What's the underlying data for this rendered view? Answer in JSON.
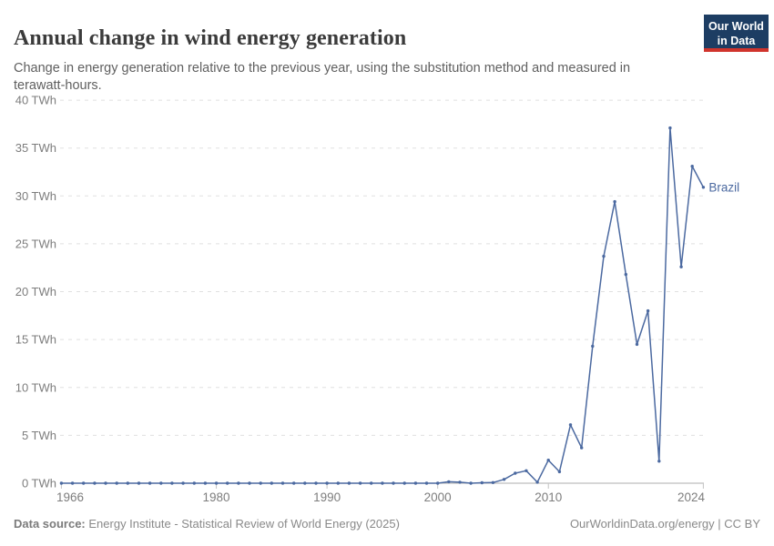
{
  "header": {
    "title": "Annual change in wind energy generation",
    "subtitle": "Change in energy generation relative to the previous year, using the substitution method and measured in terawatt-hours.",
    "logo": {
      "line1": "Our World",
      "line2": "in Data"
    }
  },
  "footer": {
    "source_label": "Data source:",
    "source_text": "Energy Institute - Statistical Review of World Energy (2025)",
    "credit": "OurWorldinData.org/energy | CC BY"
  },
  "colors": {
    "series_line": "#4b69a0",
    "logo_bg": "#1d3d63",
    "logo_accent": "#d0342c",
    "grid": "#e0e0e0",
    "axis": "#adadad",
    "tick": "#c4c4c4",
    "tick_text": "#7d7d7d"
  },
  "chart_data": {
    "type": "line",
    "title": "Annual change in wind energy generation",
    "unit": "TWh",
    "ylabel": "",
    "xlabel": "",
    "ylim": [
      0,
      40
    ],
    "ytick_step": 5,
    "grid": "horizontal-dashed",
    "legend_position": "label-at-line-end",
    "xticks": [
      1966,
      1980,
      1990,
      2000,
      2010,
      2024
    ],
    "years": [
      1966,
      1967,
      1968,
      1969,
      1970,
      1971,
      1972,
      1973,
      1974,
      1975,
      1976,
      1977,
      1978,
      1979,
      1980,
      1981,
      1982,
      1983,
      1984,
      1985,
      1986,
      1987,
      1988,
      1989,
      1990,
      1991,
      1992,
      1993,
      1994,
      1995,
      1996,
      1997,
      1998,
      1999,
      2000,
      2001,
      2002,
      2003,
      2004,
      2005,
      2006,
      2007,
      2008,
      2009,
      2010,
      2011,
      2012,
      2013,
      2014,
      2015,
      2016,
      2017,
      2018,
      2019,
      2020,
      2021,
      2022,
      2023,
      2024
    ],
    "series": [
      {
        "name": "Brazil",
        "color": "#4b69a0",
        "values": [
          0,
          0,
          0,
          0,
          0,
          0,
          0,
          0,
          0,
          0,
          0,
          0,
          0,
          0,
          0,
          0,
          0,
          0,
          0,
          0,
          0,
          0,
          0,
          0,
          0,
          0,
          0,
          0,
          0,
          0,
          0,
          0,
          0,
          0,
          0,
          0.15,
          0.1,
          0,
          0.05,
          0.07,
          0.4,
          1.05,
          1.3,
          0.1,
          2.4,
          1.2,
          6.1,
          3.7,
          14.3,
          23.7,
          29.4,
          21.8,
          14.5,
          18,
          2.3,
          37.1,
          22.6,
          33.1,
          30.9
        ]
      }
    ]
  }
}
